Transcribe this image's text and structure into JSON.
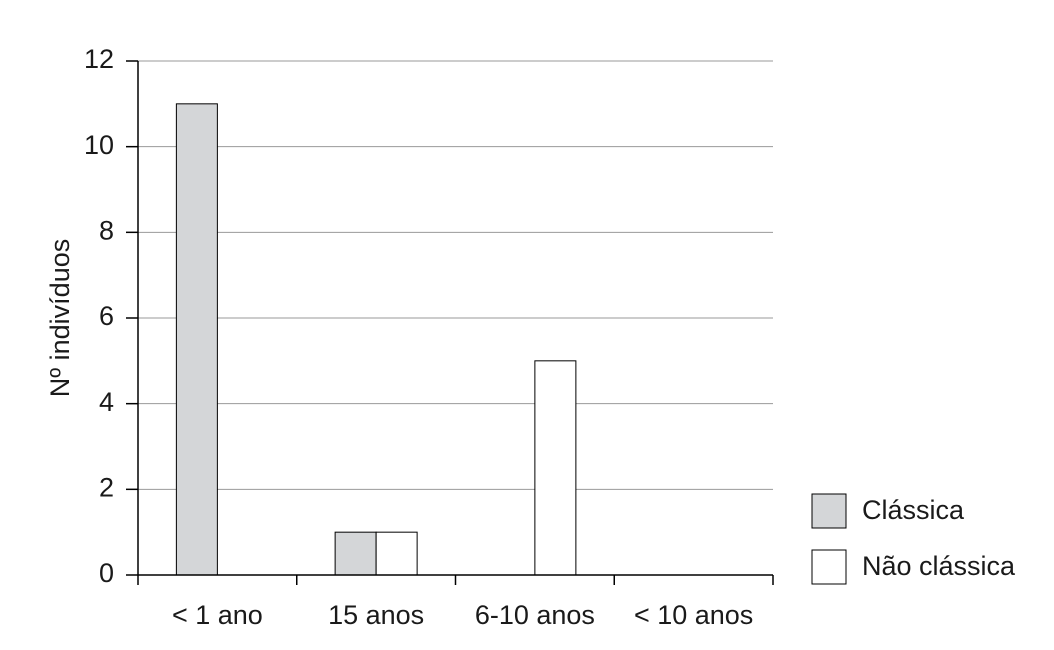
{
  "chart_data": {
    "type": "bar",
    "y_label": "Nº indivíduos",
    "categories": [
      "< 1 ano",
      "15 anos",
      "6-10 anos",
      "< 10 anos"
    ],
    "series": [
      {
        "name": "Clássica",
        "color": "#d4d6d8",
        "values": [
          11,
          1,
          0,
          0
        ]
      },
      {
        "name": "Não clássica",
        "color": "#ffffff",
        "values": [
          0,
          1,
          5,
          0
        ]
      }
    ],
    "ylim": [
      0,
      12
    ],
    "yticks": [
      0,
      2,
      4,
      6,
      8,
      10,
      12
    ],
    "grid": true,
    "legend": "right"
  }
}
